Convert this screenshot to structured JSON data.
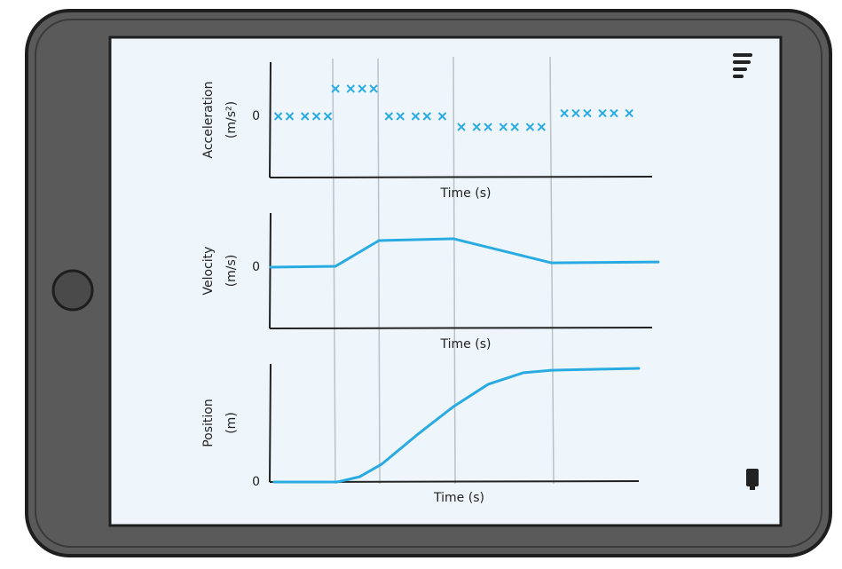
{
  "chart_data": [
    {
      "type": "scatter",
      "y_label": [
        "Acceleration",
        "(m/s²)"
      ],
      "x_label": "Time (s)",
      "color": "#29abe2",
      "xlim": [
        0,
        10
      ],
      "ylim": [
        -2,
        2
      ],
      "yticks": [
        0
      ],
      "x": [
        0.2,
        0.5,
        0.9,
        1.2,
        1.5,
        1.7,
        2.1,
        2.4,
        2.7,
        3.1,
        3.4,
        3.8,
        4.1,
        4.5,
        5.0,
        5.4,
        5.7,
        6.1,
        6.4,
        6.8,
        7.1,
        7.7,
        8.0,
        8.3,
        8.7,
        9.0,
        9.4
      ],
      "values": [
        0,
        0,
        0,
        0,
        0,
        0.9,
        0.9,
        0.9,
        0.9,
        0,
        0,
        0,
        0,
        0,
        -0.35,
        -0.35,
        -0.35,
        -0.35,
        -0.35,
        -0.35,
        -0.35,
        0.1,
        0.1,
        0.1,
        0.1,
        0.1,
        0.1
      ]
    },
    {
      "type": "line",
      "y_label": [
        "Velocity",
        "(m/s)"
      ],
      "x_label": "Time (s)",
      "color": "#29abe2",
      "xlim": [
        0,
        10
      ],
      "ylim": [
        -2,
        2
      ],
      "yticks": [
        0
      ],
      "x": [
        0,
        1.7,
        2.84,
        4.79,
        7.37,
        10.16
      ],
      "values": [
        0,
        0.03,
        0.87,
        0.93,
        0.14,
        0.17
      ]
    },
    {
      "type": "line",
      "y_label": [
        "Position",
        "(m)"
      ],
      "x_label": "Time (s)",
      "color": "#29abe2",
      "xlim": [
        0,
        10
      ],
      "ylim": [
        0,
        4
      ],
      "yticks": [
        0
      ],
      "x": [
        0.09,
        1.74,
        2.33,
        2.91,
        3.84,
        4.79,
        5.7,
        6.63,
        7.37,
        9.65
      ],
      "values": [
        0,
        0,
        0.17,
        0.58,
        1.54,
        2.46,
        3.19,
        3.57,
        3.65,
        3.71
      ]
    }
  ]
}
